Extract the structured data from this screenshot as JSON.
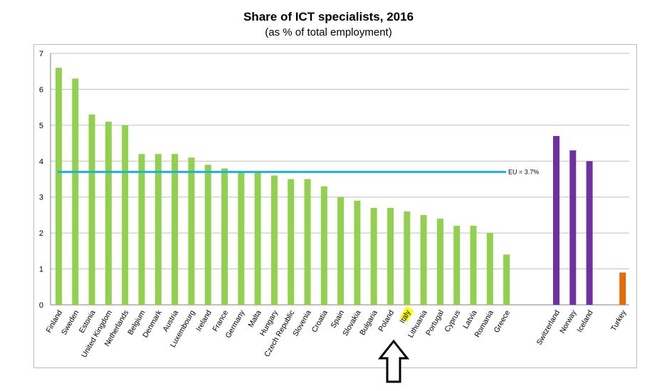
{
  "chart_data": {
    "type": "bar",
    "title": "Share of ICT specialists, 2016",
    "subtitle": "(as % of total employment)",
    "ylim": [
      0,
      7
    ],
    "yticks": [
      0,
      1,
      2,
      3,
      4,
      5,
      6,
      7
    ],
    "grid": true,
    "categories": [
      "Finland",
      "Sweden",
      "Estonia",
      "United Kingdom",
      "Netherlands",
      "Belgium",
      "Denmark",
      "Austria",
      "Luxembourg",
      "Ireland",
      "France",
      "Germany",
      "Malta",
      "Hungary",
      "Czech Republic",
      "Slovenia",
      "Croatia",
      "Spain",
      "Slovakia",
      "Bulgaria",
      "Poland",
      "Italy",
      "Lithuania",
      "Portugal",
      "Cyprus",
      "Latvia",
      "Romania",
      "Greece",
      "Switzerland",
      "Norway",
      "Iceland",
      "Turkey"
    ],
    "values": [
      6.6,
      6.3,
      5.3,
      5.1,
      5.0,
      4.2,
      4.2,
      4.2,
      4.1,
      3.9,
      3.8,
      3.7,
      3.7,
      3.6,
      3.5,
      3.5,
      3.3,
      3.0,
      2.9,
      2.7,
      2.7,
      2.6,
      2.5,
      2.4,
      2.2,
      2.2,
      2.0,
      1.4,
      4.7,
      4.3,
      4.0,
      0.9
    ],
    "groups": [
      "eu",
      "eu",
      "eu",
      "eu",
      "eu",
      "eu",
      "eu",
      "eu",
      "eu",
      "eu",
      "eu",
      "eu",
      "eu",
      "eu",
      "eu",
      "eu",
      "eu",
      "eu",
      "eu",
      "eu",
      "eu",
      "eu",
      "eu",
      "eu",
      "eu",
      "eu",
      "eu",
      "eu",
      "efta",
      "efta",
      "efta",
      "candidate"
    ],
    "colors": {
      "eu": "#92d050",
      "efta": "#7030a0",
      "candidate": "#e36c0a",
      "eu_line": "#1fb0e0",
      "highlight": "#ffff00",
      "grid": "#bfbfbf"
    },
    "reference_line": {
      "value": 3.7,
      "label": "EU = 3.7%"
    },
    "highlighted_category": "Italy"
  },
  "annotation": {
    "arrow_icon": "up-arrow-icon"
  }
}
